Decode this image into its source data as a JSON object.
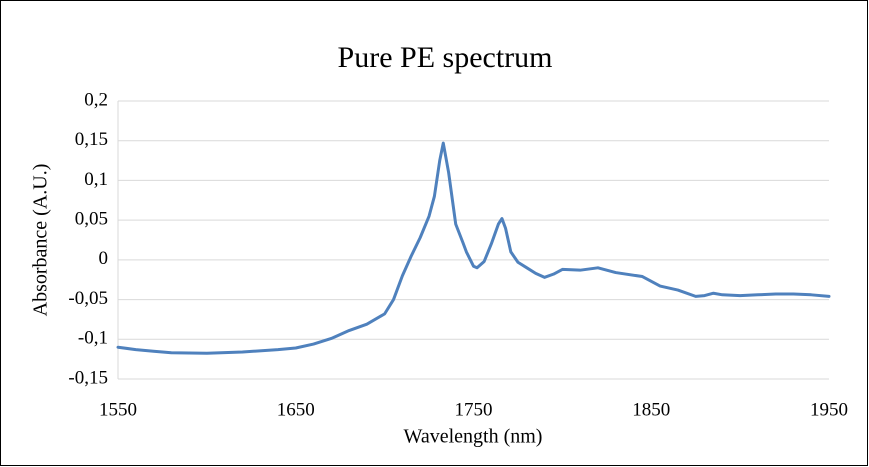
{
  "chart_data": {
    "type": "line",
    "title": "Pure PE spectrum",
    "x_label": "Wavelength (nm)",
    "y_label": "Absorbance (A.U.)",
    "xlim": [
      1550,
      1950
    ],
    "xticks": [
      1550,
      1650,
      1750,
      1850,
      1950
    ],
    "ylim": [
      -0.15,
      0.2
    ],
    "yticks": [
      {
        "value": -0.15,
        "label": "-0,15"
      },
      {
        "value": -0.1,
        "label": "-0,1"
      },
      {
        "value": -0.05,
        "label": "-0,05"
      },
      0,
      {
        "value": 0.05,
        "label": "0,05"
      },
      {
        "value": 0.1,
        "label": "0,1"
      },
      {
        "value": 0.15,
        "label": "0,15"
      },
      {
        "value": 0.2,
        "label": "0,2"
      }
    ],
    "grid": true,
    "x": [
      1550,
      1560,
      1570,
      1580,
      1600,
      1620,
      1640,
      1650,
      1660,
      1670,
      1680,
      1690,
      1700,
      1705,
      1710,
      1715,
      1720,
      1725,
      1728,
      1731,
      1733,
      1736,
      1740,
      1744,
      1746,
      1750,
      1752,
      1756,
      1760,
      1764,
      1766,
      1768,
      1771,
      1775,
      1780,
      1785,
      1790,
      1795,
      1800,
      1810,
      1820,
      1830,
      1845,
      1855,
      1865,
      1875,
      1880,
      1885,
      1890,
      1900,
      1910,
      1920,
      1930,
      1940,
      1950
    ],
    "series": [
      {
        "name": "Pure PE",
        "color": "#4f81bd",
        "values": [
          -0.11,
          -0.113,
          -0.115,
          -0.117,
          -0.1175,
          -0.116,
          -0.113,
          -0.111,
          -0.106,
          -0.099,
          -0.089,
          -0.081,
          -0.068,
          -0.05,
          -0.02,
          0.005,
          0.028,
          0.055,
          0.08,
          0.125,
          0.147,
          0.11,
          0.045,
          0.022,
          0.01,
          -0.008,
          -0.01,
          -0.002,
          0.02,
          0.045,
          0.052,
          0.04,
          0.01,
          -0.003,
          -0.01,
          -0.017,
          -0.022,
          -0.018,
          -0.012,
          -0.013,
          -0.01,
          -0.016,
          -0.021,
          -0.033,
          -0.038,
          -0.046,
          -0.045,
          -0.042,
          -0.044,
          -0.045,
          -0.044,
          -0.043,
          -0.043,
          -0.044,
          -0.046
        ]
      }
    ]
  }
}
